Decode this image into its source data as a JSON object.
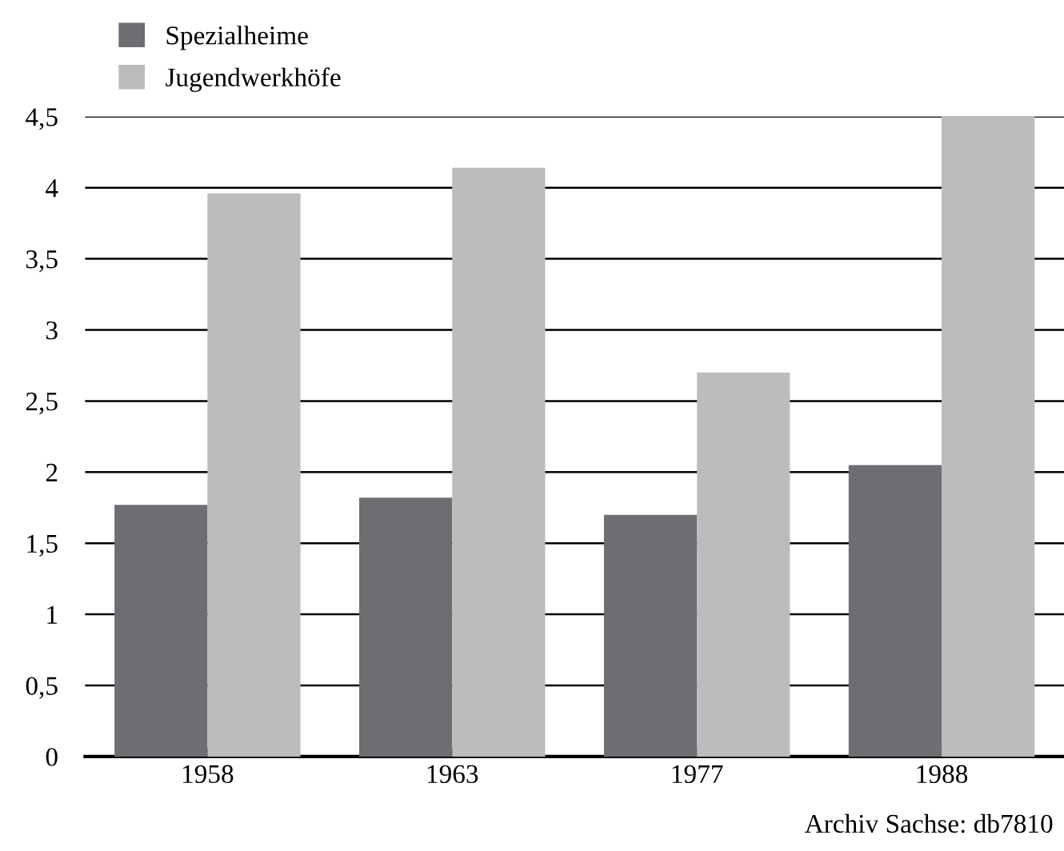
{
  "chart_data": {
    "type": "bar",
    "categories": [
      "1958",
      "1963",
      "1977",
      "1988"
    ],
    "series": [
      {
        "name": "Spezialheime",
        "color": "#6d6e71",
        "values": [
          1.77,
          1.82,
          1.7,
          2.05
        ]
      },
      {
        "name": "Jugendwerkhöfe",
        "color": "#bcbcbc",
        "values": [
          3.96,
          4.14,
          2.7,
          4.5
        ]
      }
    ],
    "ylim": [
      0,
      4.5
    ],
    "yticks": [
      0,
      {
        "value": 0.5,
        "label": "0,5"
      },
      1,
      {
        "value": 1.5,
        "label": "1,5"
      },
      2,
      {
        "value": 2.5,
        "label": "2,5"
      },
      3,
      {
        "value": 3.5,
        "label": "3,5"
      },
      4,
      {
        "value": 4.5,
        "label": "4,5"
      }
    ],
    "grid": "y",
    "legend": "top left",
    "annotations": [
      "Archiv Sachse: db7810"
    ]
  }
}
